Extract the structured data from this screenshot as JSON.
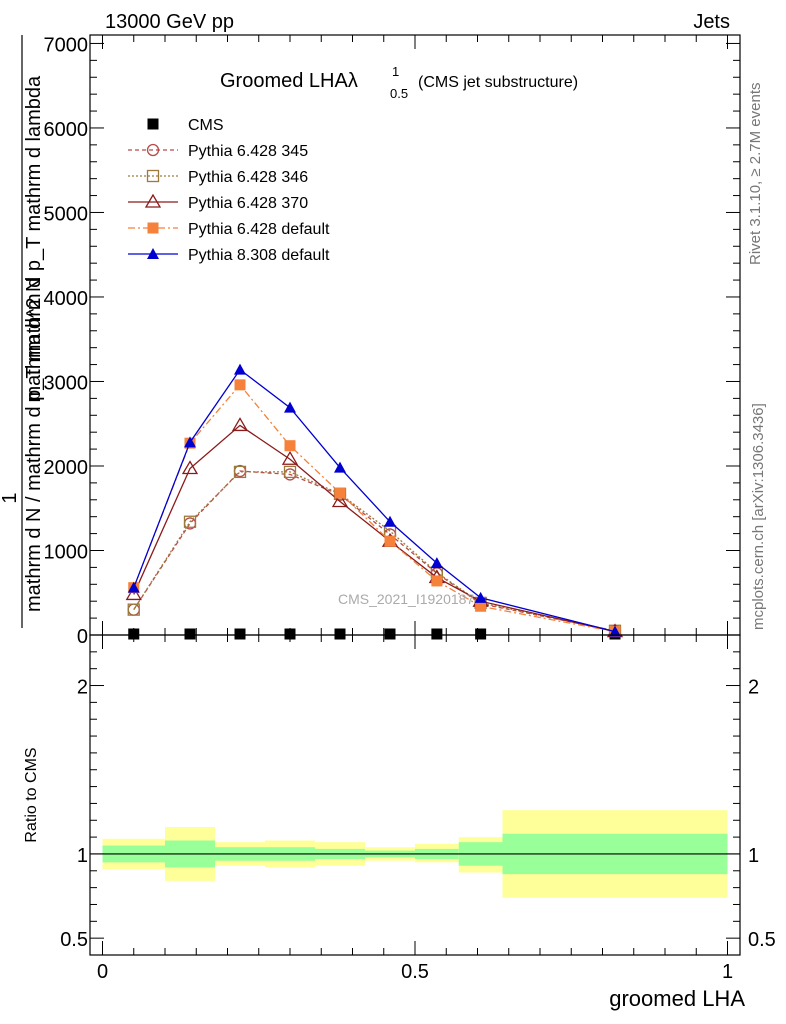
{
  "header": {
    "left": "13000 GeV pp",
    "right": "Jets"
  },
  "side_labels": {
    "rivet": "Rivet 3.1.10, ≥ 2.7M events",
    "mcplots": "mcplots.cern.ch [arXiv:1306.3436]"
  },
  "watermark": "CMS_2021_I1920187",
  "chart_data": [
    {
      "type": "line",
      "panel": "main",
      "title": "Groomed LHAλ",
      "title_super": "1",
      "title_sub": "0.5",
      "title_suffix": "(CMS jet substructure)",
      "ylabel_numerator": "mathrm d^2 N",
      "ylabel_denominator": "mathrm d N / mathrm d p_T mathrm d p_T mathrm d lambda",
      "ylabel_prefix": "1",
      "xlim": [
        -0.02,
        1.02
      ],
      "ylim": [
        0,
        7100
      ],
      "ytick_labels": [
        "0",
        "1000",
        "2000",
        "3000",
        "4000",
        "5000",
        "6000",
        "7000"
      ],
      "x": [
        0.05,
        0.14,
        0.22,
        0.3,
        0.38,
        0.46,
        0.535,
        0.605,
        0.82
      ],
      "series": [
        {
          "name": "CMS",
          "color": "#000000",
          "marker": "square-filled",
          "dash": "none",
          "values": [
            0,
            0,
            0,
            0,
            0,
            0,
            0,
            0,
            0
          ]
        },
        {
          "name": "Pythia 6.428 345",
          "color": "#b84a4a",
          "marker": "circle-open",
          "dash": "4,3",
          "values": [
            300,
            1320,
            1940,
            1900,
            1660,
            1190,
            730,
            370,
            50
          ]
        },
        {
          "name": "Pythia 6.428 346",
          "color": "#9c7a3c",
          "marker": "square-open",
          "dash": "2,2",
          "values": [
            300,
            1340,
            1930,
            1930,
            1670,
            1230,
            740,
            380,
            50
          ]
        },
        {
          "name": "Pythia 6.428 370",
          "color": "#8b1a1a",
          "marker": "triangle-open",
          "dash": "none",
          "values": [
            480,
            1970,
            2480,
            2080,
            1580,
            1110,
            680,
            400,
            40
          ]
        },
        {
          "name": "Pythia 6.428 default",
          "color": "#f5813a",
          "marker": "square-filled",
          "dash": "7,3,2,3",
          "values": [
            560,
            2270,
            2960,
            2240,
            1680,
            1110,
            640,
            340,
            40
          ]
        },
        {
          "name": "Pythia 8.308 default",
          "color": "#0000d0",
          "marker": "triangle-filled",
          "dash": "none",
          "values": [
            560,
            2280,
            3140,
            2690,
            1980,
            1340,
            850,
            440,
            40
          ]
        }
      ]
    },
    {
      "type": "area",
      "panel": "ratio",
      "ylabel": "Ratio to CMS",
      "xlabel": "groomed LHA",
      "xlim": [
        -0.02,
        1.02
      ],
      "ylim": [
        0.4,
        2.3
      ],
      "ytick_labels": [
        "0.5",
        "1",
        "2"
      ],
      "xtick_labels": [
        "0",
        "0.5",
        "1"
      ],
      "bin_edges": [
        0.0,
        0.1,
        0.18,
        0.26,
        0.34,
        0.42,
        0.5,
        0.57,
        0.64,
        1.0
      ],
      "stat_band": {
        "color": "#99ff99",
        "low": [
          0.95,
          0.92,
          0.96,
          0.96,
          0.97,
          0.98,
          0.97,
          0.93,
          0.88
        ],
        "high": [
          1.05,
          1.08,
          1.04,
          1.04,
          1.03,
          1.02,
          1.03,
          1.07,
          1.12
        ]
      },
      "total_band": {
        "color": "#ffff99",
        "low": [
          0.91,
          0.84,
          0.93,
          0.92,
          0.93,
          0.96,
          0.95,
          0.89,
          0.74
        ],
        "high": [
          1.09,
          1.16,
          1.07,
          1.08,
          1.07,
          1.04,
          1.06,
          1.1,
          1.26
        ]
      },
      "reference": 1.0
    }
  ]
}
